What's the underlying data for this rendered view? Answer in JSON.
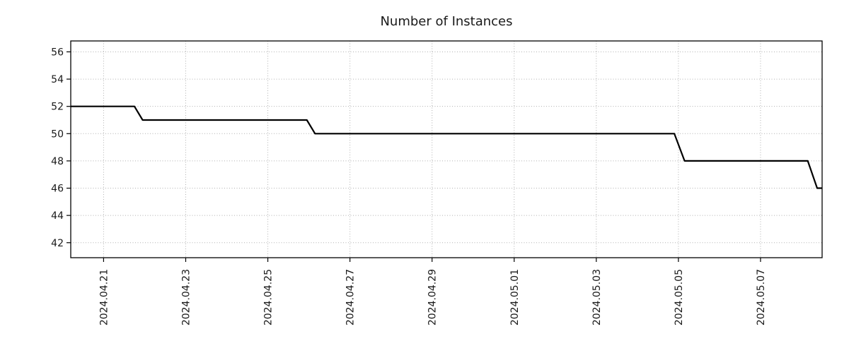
{
  "page": {
    "background": "#ffffff"
  },
  "chart_data": {
    "type": "line",
    "title": "Number of Instances",
    "xlabel": "",
    "ylabel": "",
    "grid": "dotted",
    "grid_color": "#b0b0b0",
    "legend": "none",
    "line": {
      "color": "#000000",
      "width": 2.2,
      "style": "step"
    },
    "x_axis": {
      "unit": "days since 2024-04-20",
      "domain": [
        0.2,
        18.5
      ],
      "ticks": [
        {
          "day": 1,
          "label": "2024.04.21"
        },
        {
          "day": 3,
          "label": "2024.04.23"
        },
        {
          "day": 5,
          "label": "2024.04.25"
        },
        {
          "day": 7,
          "label": "2024.04.27"
        },
        {
          "day": 9,
          "label": "2024.04.29"
        },
        {
          "day": 11,
          "label": "2024.05.01"
        },
        {
          "day": 13,
          "label": "2024.05.03"
        },
        {
          "day": 15,
          "label": "2024.05.05"
        },
        {
          "day": 17,
          "label": "2024.05.07"
        }
      ]
    },
    "y_axis": {
      "domain": [
        40.9,
        56.8
      ],
      "ticks": [
        42,
        44,
        46,
        48,
        50,
        52,
        54,
        56
      ]
    },
    "series": [
      {
        "name": "Number of Instances",
        "color": "#000000",
        "points": [
          {
            "day": 0.2,
            "value": 52
          },
          {
            "day": 1.75,
            "value": 52
          },
          {
            "day": 1.95,
            "value": 51
          },
          {
            "day": 5.95,
            "value": 51
          },
          {
            "day": 6.15,
            "value": 50
          },
          {
            "day": 14.9,
            "value": 50
          },
          {
            "day": 15.15,
            "value": 48
          },
          {
            "day": 18.15,
            "value": 48
          },
          {
            "day": 18.38,
            "value": 46
          },
          {
            "day": 18.5,
            "value": 46
          }
        ]
      }
    ],
    "step_summary": [
      {
        "date": "2024.04.20",
        "value": 52
      },
      {
        "date": "2024.04.22",
        "value": 51
      },
      {
        "date": "2024.04.26",
        "value": 50
      },
      {
        "date": "2024.05.05",
        "value": 48
      },
      {
        "date": "2024.05.08",
        "value": 46
      }
    ]
  }
}
